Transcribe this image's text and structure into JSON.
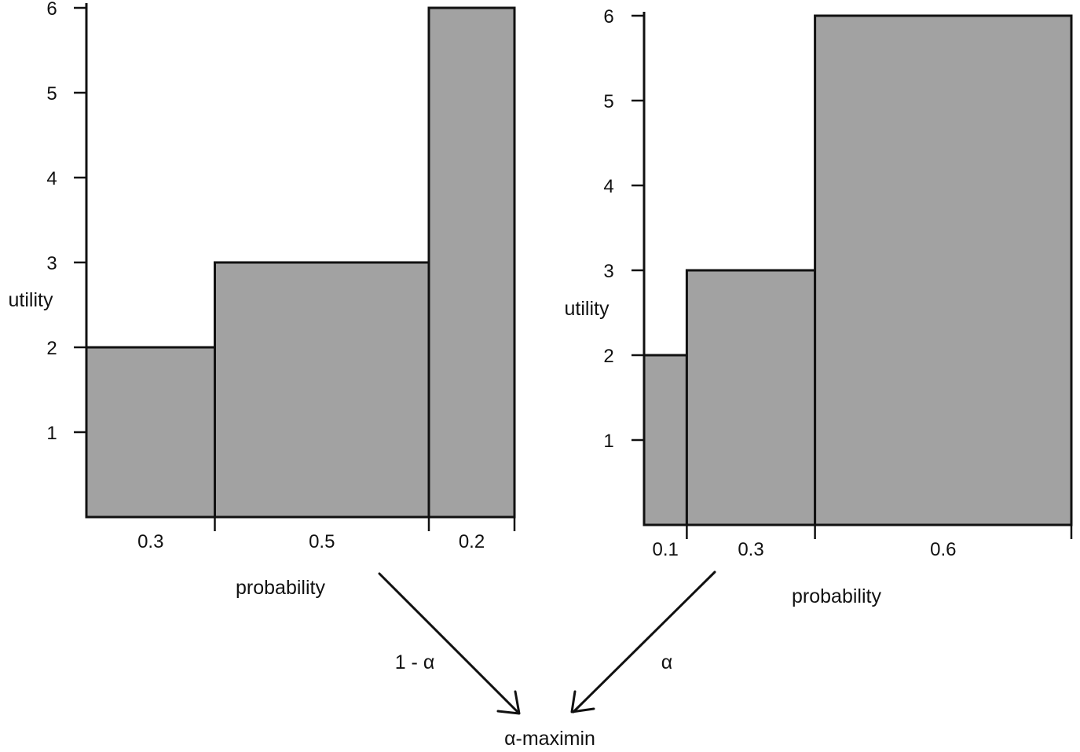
{
  "colors": {
    "bar_fill": "#a2a2a2",
    "line": "#111111",
    "background": "#ffffff"
  },
  "chart_data": [
    {
      "type": "bar",
      "variant": "variable-width histogram",
      "xlabel": "probability",
      "ylabel": "utility",
      "ylim": [
        0,
        6
      ],
      "yticks": [
        "1",
        "2",
        "3",
        "4",
        "5",
        "6"
      ],
      "bars": [
        {
          "probability": 0.3,
          "label": "0.3",
          "utility": 2
        },
        {
          "probability": 0.5,
          "label": "0.5",
          "utility": 3
        },
        {
          "probability": 0.2,
          "label": "0.2",
          "utility": 6
        }
      ]
    },
    {
      "type": "bar",
      "variant": "variable-width histogram",
      "xlabel": "probability",
      "ylabel": "utility",
      "ylim": [
        0,
        6
      ],
      "yticks": [
        "1",
        "2",
        "3",
        "4",
        "5",
        "6"
      ],
      "bars": [
        {
          "probability": 0.1,
          "label": "0.1",
          "utility": 2
        },
        {
          "probability": 0.3,
          "label": "0.3",
          "utility": 3
        },
        {
          "probability": 0.6,
          "label": "0.6",
          "utility": 6
        }
      ]
    }
  ],
  "combination": {
    "left_weight_label": "1 - α",
    "right_weight_label": "α",
    "result_label": "α-maximin"
  }
}
